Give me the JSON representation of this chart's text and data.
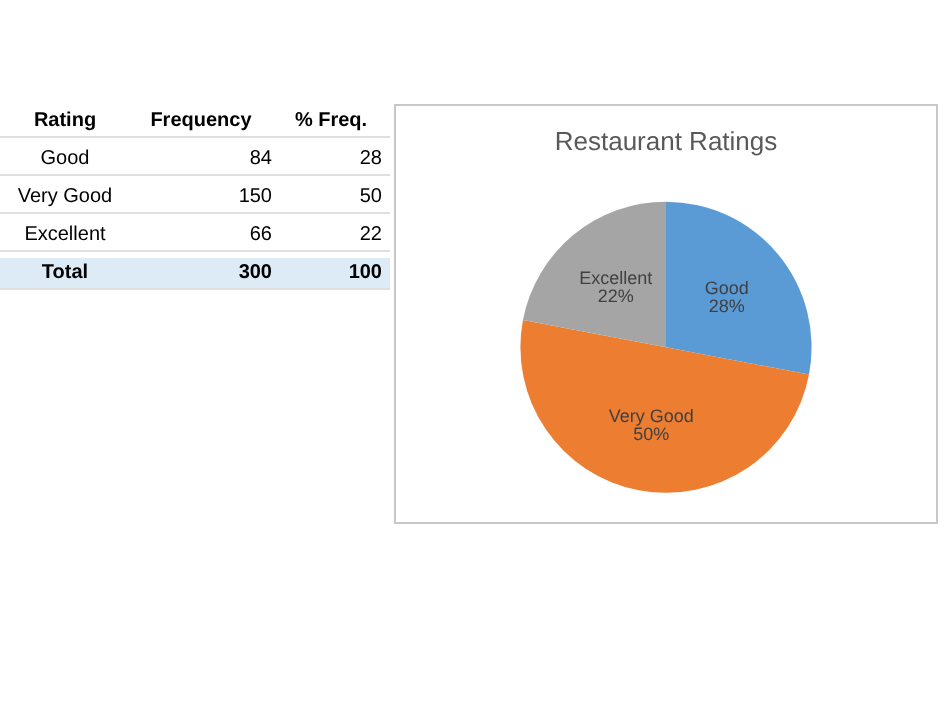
{
  "chart_data": [
    {
      "type": "other",
      "annotations": [
        "Rating",
        "Frequency",
        "% Freq.",
        "Good",
        "84",
        "28",
        "Very Good",
        "150",
        "50",
        "Excellent",
        "66",
        "22",
        "Total",
        "300",
        "100"
      ]
    },
    {
      "type": "pie",
      "title": "Restaurant Ratings",
      "categories": [
        "Good",
        "Very Good",
        "Excellent"
      ],
      "values": [
        28,
        50,
        22
      ],
      "colors": [
        "#5b9bd5",
        "#ed7d31",
        "#a5a5a5"
      ],
      "value_labels": [
        "28%",
        "50%",
        "22%"
      ],
      "legend": false
    }
  ]
}
